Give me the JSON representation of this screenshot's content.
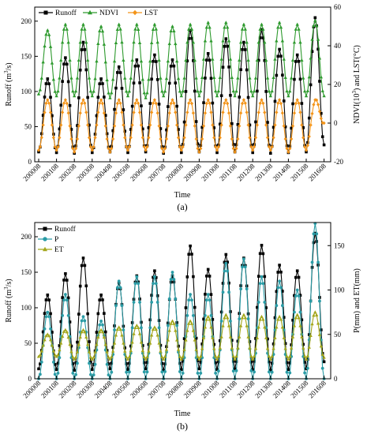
{
  "chart_data": [
    {
      "type": "line",
      "panel_label": "(a)",
      "xlabel": "Time",
      "ylabel_left_main": "Runoff (m",
      "ylabel_left_sup": "3",
      "ylabel_left_tail": "/s)",
      "ylabel_right_main": "NDVI(10",
      "ylabel_right_sup": "3",
      "ylabel_right_tail": ") and LST(°C)",
      "ylim_left": [
        0,
        220
      ],
      "ylim_right": [
        -20,
        60
      ],
      "yticks_left": [
        0,
        50,
        100,
        150,
        200
      ],
      "yticks_right": [
        -20,
        0,
        20,
        40,
        60
      ],
      "xticks": [
        "200008",
        "200108",
        "200208",
        "200308",
        "200408",
        "200508",
        "200608",
        "200708",
        "200808",
        "200908",
        "201008",
        "201108",
        "201208",
        "201308",
        "201408",
        "201508",
        "201608"
      ],
      "legend_position": "top",
      "series": [
        {
          "name": "Runoff",
          "axis": "left",
          "color": "#000000",
          "marker": "square",
          "peaks": [
            118,
            148,
            170,
            118,
            135,
            145,
            152,
            145,
            187,
            154,
            175,
            170,
            188,
            160,
            152,
            205
          ],
          "troughs": [
            14,
            13,
            12,
            13,
            14,
            13,
            14,
            12,
            13,
            14,
            13,
            14,
            13,
            12,
            13,
            14,
            24
          ]
        },
        {
          "name": "NDVI",
          "axis": "right",
          "color": "#2e9a2e",
          "marker": "triangle",
          "peaks": [
            48,
            51,
            51,
            50,
            51,
            51,
            51,
            50,
            51,
            52,
            52,
            51,
            51,
            52,
            51,
            53
          ],
          "troughs": [
            15,
            14,
            14,
            14,
            13,
            14,
            13,
            14,
            14,
            14,
            14,
            14,
            14,
            14,
            14,
            14,
            14
          ]
        },
        {
          "name": "LST",
          "axis": "right",
          "color": "#f39419",
          "marker": "diamond",
          "peaks": [
            12,
            12,
            12,
            12,
            12,
            12,
            12,
            12,
            12,
            12,
            12,
            12,
            12,
            12,
            12,
            12
          ],
          "troughs": [
            -14,
            -14,
            -15,
            -14,
            -15,
            -14,
            -14,
            -15,
            -14,
            -15,
            -14,
            -15,
            -14,
            -14,
            -15,
            -14,
            0
          ]
        }
      ]
    },
    {
      "type": "line",
      "panel_label": "(b)",
      "xlabel": "Time",
      "ylabel_left_main": "Runoff (m",
      "ylabel_left_sup": "3",
      "ylabel_left_tail": "/s)",
      "ylabel_right": "P(mm) and ET(mm)",
      "ylim_left": [
        0,
        220
      ],
      "ylim_right": [
        0,
        176
      ],
      "yticks_left": [
        0,
        50,
        100,
        150,
        200
      ],
      "yticks_right": [
        0,
        50,
        100,
        150
      ],
      "xticks": [
        "200008",
        "200108",
        "200208",
        "200308",
        "200408",
        "200508",
        "200608",
        "200708",
        "200808",
        "200908",
        "201008",
        "201108",
        "201208",
        "201308",
        "201408",
        "201508",
        "201608"
      ],
      "legend_position": "top-left",
      "series": [
        {
          "name": "Runoff",
          "axis": "left",
          "color": "#000000",
          "marker": "square",
          "peaks": [
            118,
            148,
            170,
            118,
            135,
            145,
            152,
            145,
            187,
            154,
            175,
            170,
            188,
            160,
            152,
            205
          ],
          "troughs": [
            14,
            13,
            12,
            13,
            14,
            13,
            14,
            12,
            13,
            14,
            13,
            14,
            13,
            12,
            13,
            14,
            24
          ]
        },
        {
          "name": "P",
          "axis": "right",
          "color": "#2a9ca6",
          "marker": "circle",
          "peaks": [
            75,
            95,
            70,
            65,
            110,
            115,
            115,
            120,
            95,
            95,
            130,
            135,
            115,
            110,
            100,
            175
          ],
          "troughs": [
            0,
            0,
            0,
            0,
            0,
            0,
            0,
            0,
            0,
            0,
            0,
            0,
            0,
            0,
            0,
            0,
            0
          ]
        },
        {
          "name": "ET",
          "axis": "right",
          "color": "#a3a61b",
          "marker": "triangle",
          "peaks": [
            50,
            55,
            55,
            55,
            58,
            60,
            58,
            65,
            65,
            70,
            72,
            72,
            70,
            70,
            72,
            75
          ],
          "troughs": [
            25,
            25,
            22,
            22,
            22,
            22,
            22,
            22,
            22,
            22,
            22,
            22,
            22,
            22,
            22,
            22,
            24
          ]
        }
      ]
    }
  ]
}
